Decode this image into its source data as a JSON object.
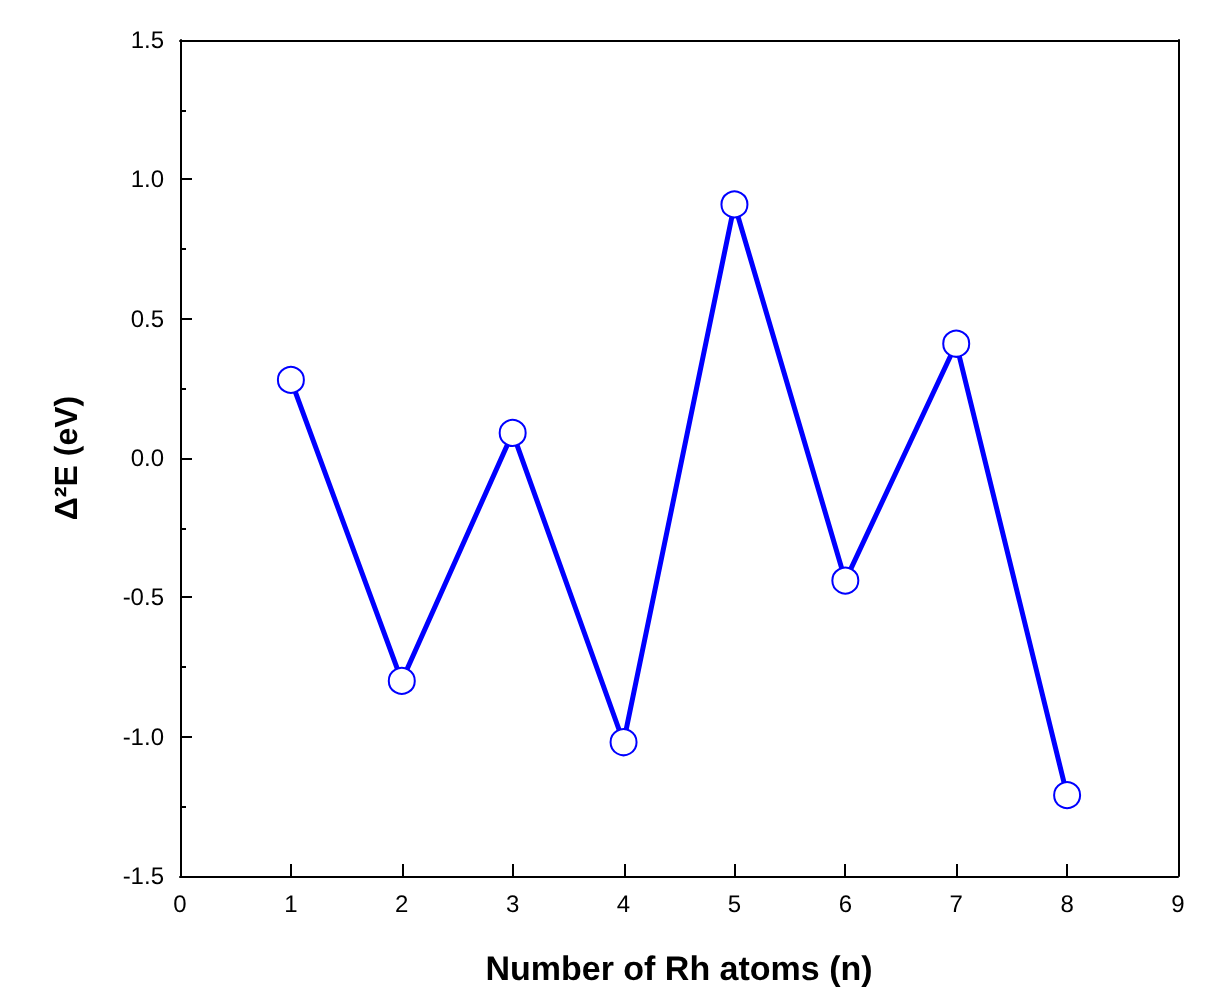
{
  "chart_data": {
    "type": "line",
    "xlabel": "Number of Rh atoms (n)",
    "ylabel": "Δ²E (eV)",
    "series": [
      {
        "color": "#0000ff",
        "x": [
          1,
          2,
          3,
          4,
          5,
          6,
          7,
          8
        ],
        "values": [
          0.28,
          -0.8,
          0.09,
          -1.02,
          0.91,
          -0.44,
          0.41,
          -1.21
        ]
      }
    ],
    "xlim": [
      0,
      9
    ],
    "xticks": [
      0,
      1,
      2,
      3,
      4,
      5,
      6,
      7,
      8,
      9
    ],
    "ylim": [
      -1.5,
      1.5
    ],
    "yticks": [
      -1.5,
      {
        "value": -1,
        "label": "-1.0"
      },
      -0.5,
      {
        "value": 0,
        "label": "0.0"
      },
      0.5,
      {
        "value": 1,
        "label": "1.0"
      },
      1.5
    ],
    "marker": "circle",
    "line_style": "solid"
  }
}
